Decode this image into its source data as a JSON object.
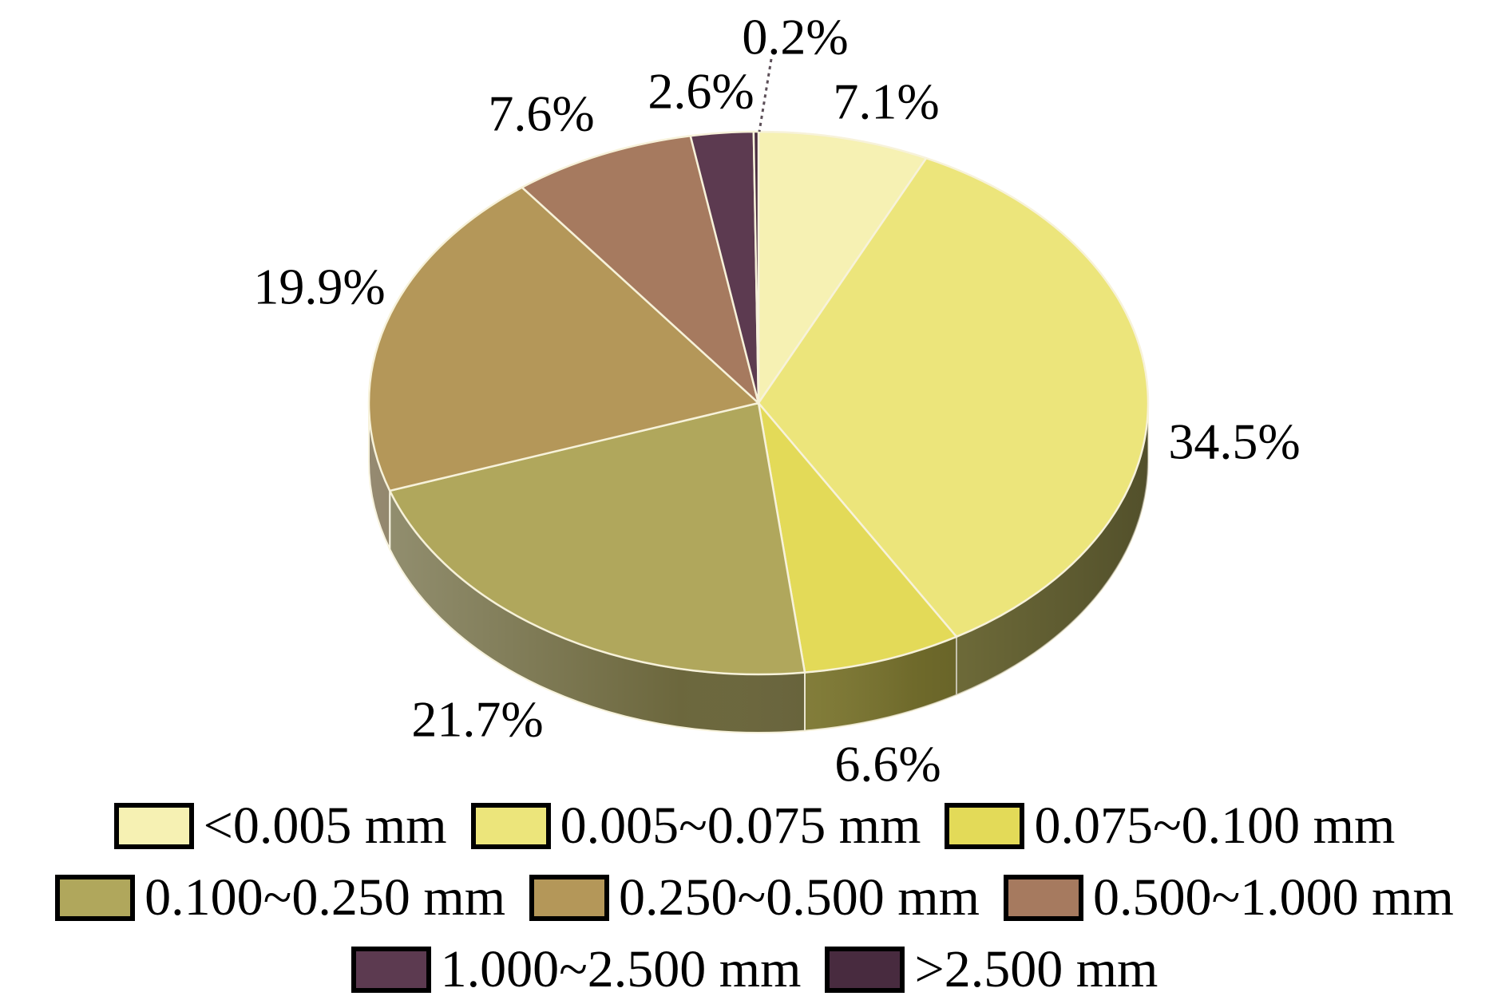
{
  "figure": {
    "background": "#ffffff",
    "text_color": "#000000"
  },
  "chart_data": {
    "type": "pie",
    "style": "3d",
    "title": "",
    "legend_position": "bottom",
    "start_angle_deg": 0,
    "direction": "clockwise",
    "categories": [
      "<0.005 mm",
      "0.005~0.075 mm",
      "0.075~0.100 mm",
      "0.100~0.250 mm",
      "0.250~0.500 mm",
      "0.500~1.000 mm",
      "1.000~2.500 mm",
      ">2.500 mm"
    ],
    "values": [
      7.1,
      34.5,
      6.6,
      21.7,
      19.9,
      7.6,
      2.6,
      0.2
    ],
    "labels": [
      "7.1%",
      "34.5%",
      "6.6%",
      "21.7%",
      "19.9%",
      "7.6%",
      "2.6%",
      "0.2%"
    ],
    "colors": [
      "#F6F1B3",
      "#ECE57B",
      "#E3DA58",
      "#B0A75C",
      "#B49759",
      "#A67A5F",
      "#5C3A50",
      "#482B3F"
    ]
  }
}
